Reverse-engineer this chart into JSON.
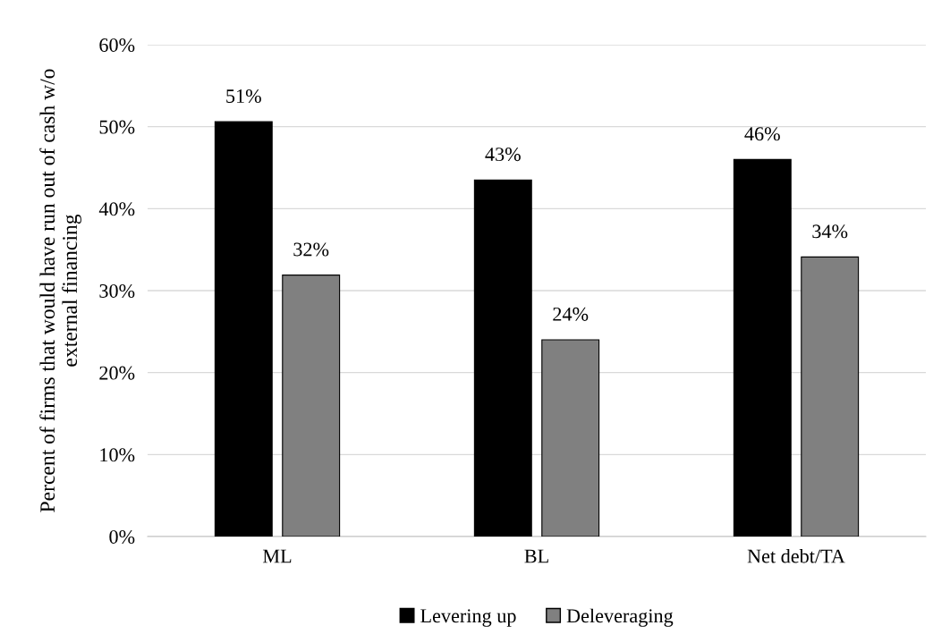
{
  "chart_data": {
    "type": "bar",
    "ylabel": "Percent of firms that would have run out of cash w/o\nexternal financing",
    "categories": [
      "ML",
      "BL",
      "Net debt/TA"
    ],
    "series": [
      {
        "name": "Levering up",
        "color": "#000000",
        "values": [
          50.6,
          43.5,
          46.0
        ],
        "value_labels": [
          "51%",
          "43%",
          "46%"
        ]
      },
      {
        "name": "Deleveraging",
        "color": "#808080",
        "values": [
          31.9,
          24.0,
          34.1
        ],
        "value_labels": [
          "32%",
          "24%",
          "34%"
        ]
      }
    ],
    "ylim": [
      0,
      60
    ],
    "yticks": [
      {
        "value": 0,
        "label": "0%"
      },
      {
        "value": 10,
        "label": "10%"
      },
      {
        "value": 20,
        "label": "20%"
      },
      {
        "value": 30,
        "label": "30%"
      },
      {
        "value": 40,
        "label": "40%"
      },
      {
        "value": 50,
        "label": "50%"
      },
      {
        "value": 60,
        "label": "60%"
      }
    ],
    "grid": "y",
    "legend": "bottom"
  }
}
